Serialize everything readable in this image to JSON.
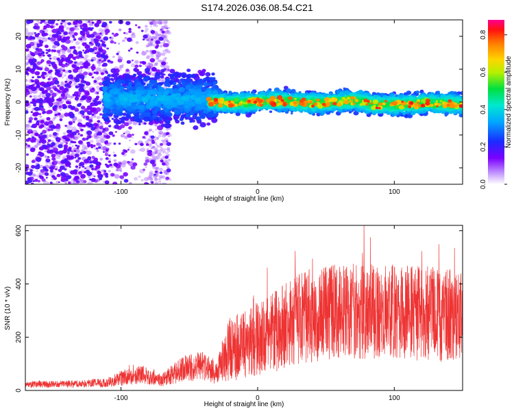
{
  "title": "S174.2026.036.08.54.C21",
  "chart_data": [
    {
      "type": "heatmap",
      "xlabel": "Height of straight line (km)",
      "ylabel": "Frequency (Hz)",
      "xlim": [
        -170,
        150
      ],
      "ylim": [
        -25,
        25
      ],
      "xticks": [
        -100,
        0,
        100
      ],
      "yticks": [
        -20,
        -10,
        0,
        10,
        20
      ],
      "colorbar": {
        "label": "Normalized spectral amplitude",
        "range": [
          0.0,
          0.88
        ],
        "ticks": [
          "0.0",
          "0.2",
          "0.4",
          "0.6",
          "0.8"
        ]
      },
      "description_of_trend": "broad scatter at low heights, narrowing to a band near 0 Hz above about -35 km",
      "center_band_hz": 0
    },
    {
      "type": "line",
      "xlabel": "Height of straight line (km)",
      "ylabel": "SNR (10 * v/v)",
      "xlim": [
        -170,
        150
      ],
      "ylim": [
        0,
        620
      ],
      "xticks": [
        -100,
        0,
        100
      ],
      "yticks": [
        0,
        200,
        400,
        600
      ],
      "color": "#ee3333",
      "envelope": [
        {
          "x": -170,
          "base": 22,
          "spread": 12
        },
        {
          "x": -130,
          "base": 25,
          "spread": 14
        },
        {
          "x": -110,
          "base": 30,
          "spread": 18
        },
        {
          "x": -100,
          "base": 45,
          "spread": 30
        },
        {
          "x": -85,
          "base": 60,
          "spread": 35
        },
        {
          "x": -70,
          "base": 40,
          "spread": 25
        },
        {
          "x": -55,
          "base": 80,
          "spread": 50
        },
        {
          "x": -40,
          "base": 95,
          "spread": 55
        },
        {
          "x": -30,
          "base": 60,
          "spread": 40
        },
        {
          "x": -22,
          "base": 150,
          "spread": 120
        },
        {
          "x": -10,
          "base": 175,
          "spread": 130
        },
        {
          "x": 10,
          "base": 215,
          "spread": 150
        },
        {
          "x": 30,
          "base": 270,
          "spread": 170
        },
        {
          "x": 60,
          "base": 300,
          "spread": 180
        },
        {
          "x": 100,
          "base": 295,
          "spread": 180
        },
        {
          "x": 130,
          "base": 285,
          "spread": 180
        },
        {
          "x": 150,
          "base": 280,
          "spread": 170
        }
      ]
    }
  ]
}
